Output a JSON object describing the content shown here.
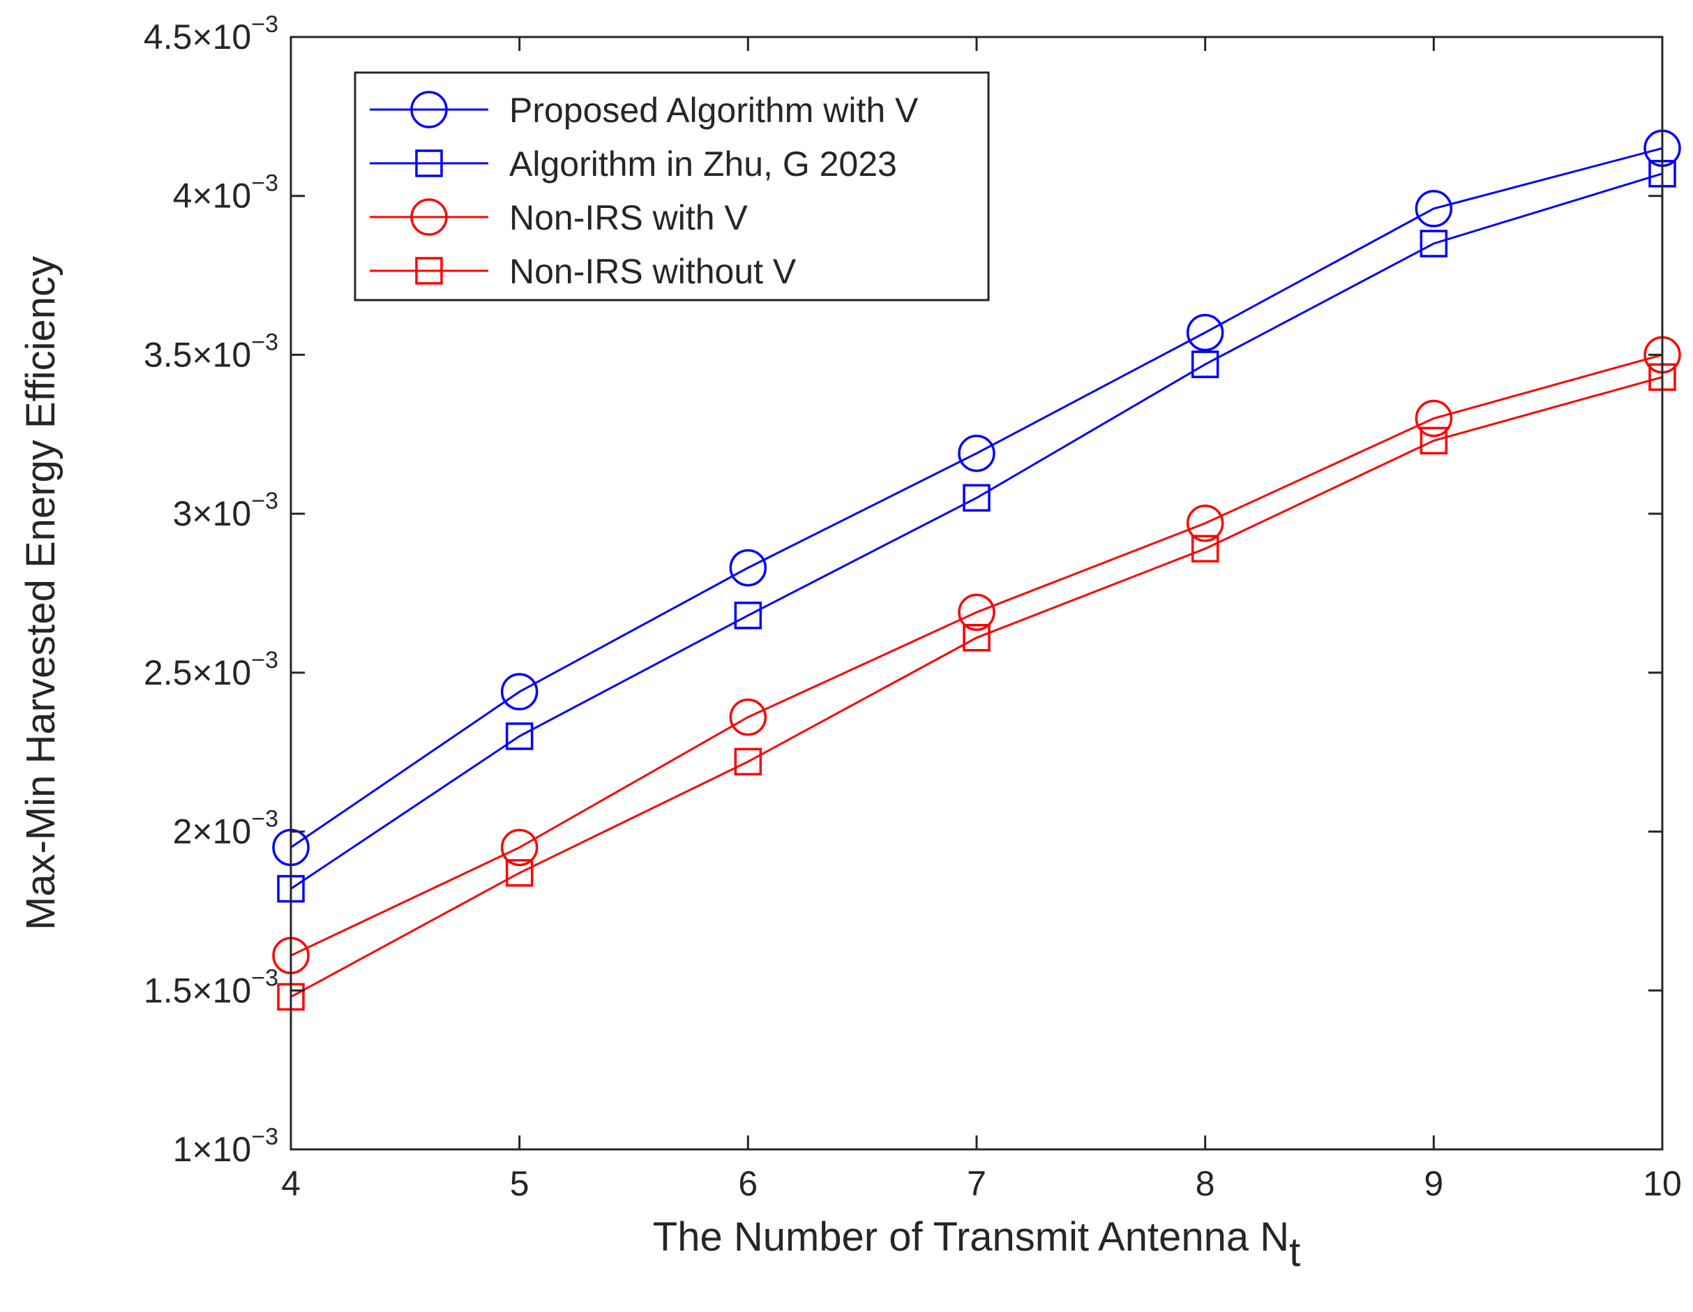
{
  "chart_data": {
    "type": "line",
    "title": "",
    "xlabel": "The Number of Transmit Antenna N",
    "xlabel_subscript": "t",
    "ylabel": "Max-Min Harvested Energy Efficiency",
    "x": [
      4,
      5,
      6,
      7,
      8,
      9,
      10
    ],
    "xlim": [
      4,
      10
    ],
    "ylim": [
      0.001,
      0.0045
    ],
    "x_ticks": [
      "4",
      "5",
      "6",
      "7",
      "8",
      "9",
      "10"
    ],
    "y_ticks": [
      {
        "mantissa": "1",
        "exponent": "−3",
        "value": 0.001
      },
      {
        "mantissa": "1.5",
        "exponent": "−3",
        "value": 0.0015
      },
      {
        "mantissa": "2",
        "exponent": "−3",
        "value": 0.002
      },
      {
        "mantissa": "2.5",
        "exponent": "−3",
        "value": 0.0025
      },
      {
        "mantissa": "3",
        "exponent": "−3",
        "value": 0.003
      },
      {
        "mantissa": "3.5",
        "exponent": "−3",
        "value": 0.0035
      },
      {
        "mantissa": "4",
        "exponent": "−3",
        "value": 0.004
      },
      {
        "mantissa": "4.5",
        "exponent": "−3",
        "value": 0.0045
      }
    ],
    "tick_times": "×10",
    "grid": false,
    "legend_position": "top-left",
    "series": [
      {
        "name": "Proposed Algorithm with V",
        "color": "#0000FF",
        "marker": "circle",
        "values": [
          0.00195,
          0.00244,
          0.00283,
          0.00319,
          0.00357,
          0.00396,
          0.00415
        ]
      },
      {
        "name": "Algorithm in Zhu, G 2023",
        "color": "#0000FF",
        "marker": "square",
        "values": [
          0.00182,
          0.0023,
          0.00268,
          0.00305,
          0.00347,
          0.00385,
          0.00407
        ]
      },
      {
        "name": "Non-IRS with V",
        "color": "#FF0000",
        "marker": "circle",
        "values": [
          0.00161,
          0.00195,
          0.00236,
          0.00269,
          0.00297,
          0.0033,
          0.0035
        ]
      },
      {
        "name": "Non-IRS without V",
        "color": "#FF0000",
        "marker": "square",
        "values": [
          0.00148,
          0.00187,
          0.00222,
          0.00261,
          0.00289,
          0.00323,
          0.00343
        ]
      }
    ]
  }
}
